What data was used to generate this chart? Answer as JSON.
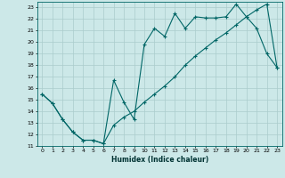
{
  "title": "",
  "xlabel": "Humidex (Indice chaleur)",
  "bg_color": "#cce8e8",
  "grid_color": "#aacccc",
  "line_color": "#006666",
  "xlim": [
    -0.5,
    23.5
  ],
  "ylim": [
    11,
    23.5
  ],
  "xticks": [
    0,
    1,
    2,
    3,
    4,
    5,
    6,
    7,
    8,
    9,
    10,
    11,
    12,
    13,
    14,
    15,
    16,
    17,
    18,
    19,
    20,
    21,
    22,
    23
  ],
  "yticks": [
    11,
    12,
    13,
    14,
    15,
    16,
    17,
    18,
    19,
    20,
    21,
    22,
    23
  ],
  "line1_x": [
    0,
    1,
    2,
    3,
    4,
    5,
    6,
    7,
    8,
    9,
    10,
    11,
    12,
    13,
    14,
    15,
    16,
    17,
    18,
    19,
    20,
    21,
    22,
    23
  ],
  "line1_y": [
    15.5,
    14.7,
    13.3,
    12.2,
    11.5,
    11.5,
    11.2,
    16.7,
    14.8,
    13.3,
    19.8,
    21.2,
    20.5,
    22.5,
    21.2,
    22.2,
    22.1,
    22.1,
    22.2,
    23.3,
    22.2,
    21.2,
    19.0,
    17.8
  ],
  "line2_x": [
    0,
    1,
    2,
    3,
    4,
    5,
    6,
    7,
    8,
    9,
    10,
    11,
    12,
    13,
    14,
    15,
    16,
    17,
    18,
    19,
    20,
    21,
    22,
    23
  ],
  "line2_y": [
    15.5,
    14.7,
    13.3,
    12.2,
    11.5,
    11.5,
    11.2,
    12.8,
    13.5,
    14.0,
    14.8,
    15.5,
    16.2,
    17.0,
    18.0,
    18.8,
    19.5,
    20.2,
    20.8,
    21.5,
    22.2,
    22.8,
    23.3,
    17.8
  ]
}
